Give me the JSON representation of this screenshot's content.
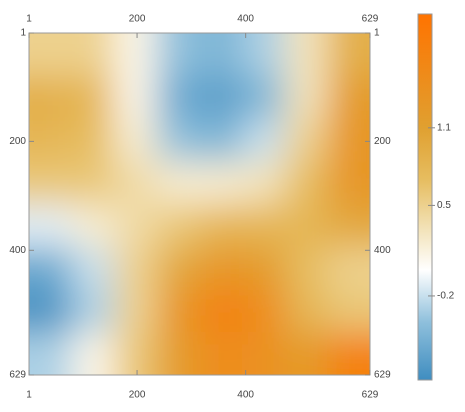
{
  "chart_data": {
    "type": "heatmap",
    "xlim": [
      1,
      629
    ],
    "ylim": [
      1,
      629
    ],
    "y_reversed": true,
    "xticks": [
      1,
      200,
      400,
      629
    ],
    "yticks": [
      1,
      200,
      400,
      629
    ],
    "zlim": [
      -0.85,
      1.98
    ],
    "zticks": [
      1.1,
      0.5,
      -0.2
    ],
    "colormap": [
      {
        "value": -0.85,
        "color": "#3f8dc0"
      },
      {
        "value": -0.4,
        "color": "#8fc0dc"
      },
      {
        "value": 0,
        "color": "#ffffff"
      },
      {
        "value": 0.3,
        "color": "#f3e4bc"
      },
      {
        "value": 0.7,
        "color": "#e6bd60"
      },
      {
        "value": 1.1,
        "color": "#e0a030"
      },
      {
        "value": 1.98,
        "color": "#ff7300"
      }
    ],
    "z": [
      [
        0.5,
        0.5,
        0.1,
        -0.4,
        -0.5,
        -0.3,
        0.3,
        0.9
      ],
      [
        0.9,
        0.8,
        0.1,
        -0.6,
        -0.7,
        -0.5,
        0.3,
        1.2
      ],
      [
        0.8,
        0.7,
        0.2,
        -0.4,
        -0.5,
        -0.2,
        0.5,
        1.3
      ],
      [
        0.6,
        0.6,
        0.4,
        0.2,
        0.2,
        0.3,
        0.7,
        1.3
      ],
      [
        -0.1,
        0.2,
        0.4,
        0.6,
        0.8,
        0.8,
        0.8,
        1.0
      ],
      [
        -0.6,
        -0.2,
        0.5,
        1.0,
        1.3,
        1.2,
        0.7,
        0.5
      ],
      [
        -0.8,
        -0.3,
        0.5,
        1.3,
        1.7,
        1.5,
        0.8,
        0.6
      ],
      [
        -0.3,
        0.1,
        0.6,
        1.2,
        1.5,
        1.4,
        1.2,
        1.7
      ]
    ]
  }
}
